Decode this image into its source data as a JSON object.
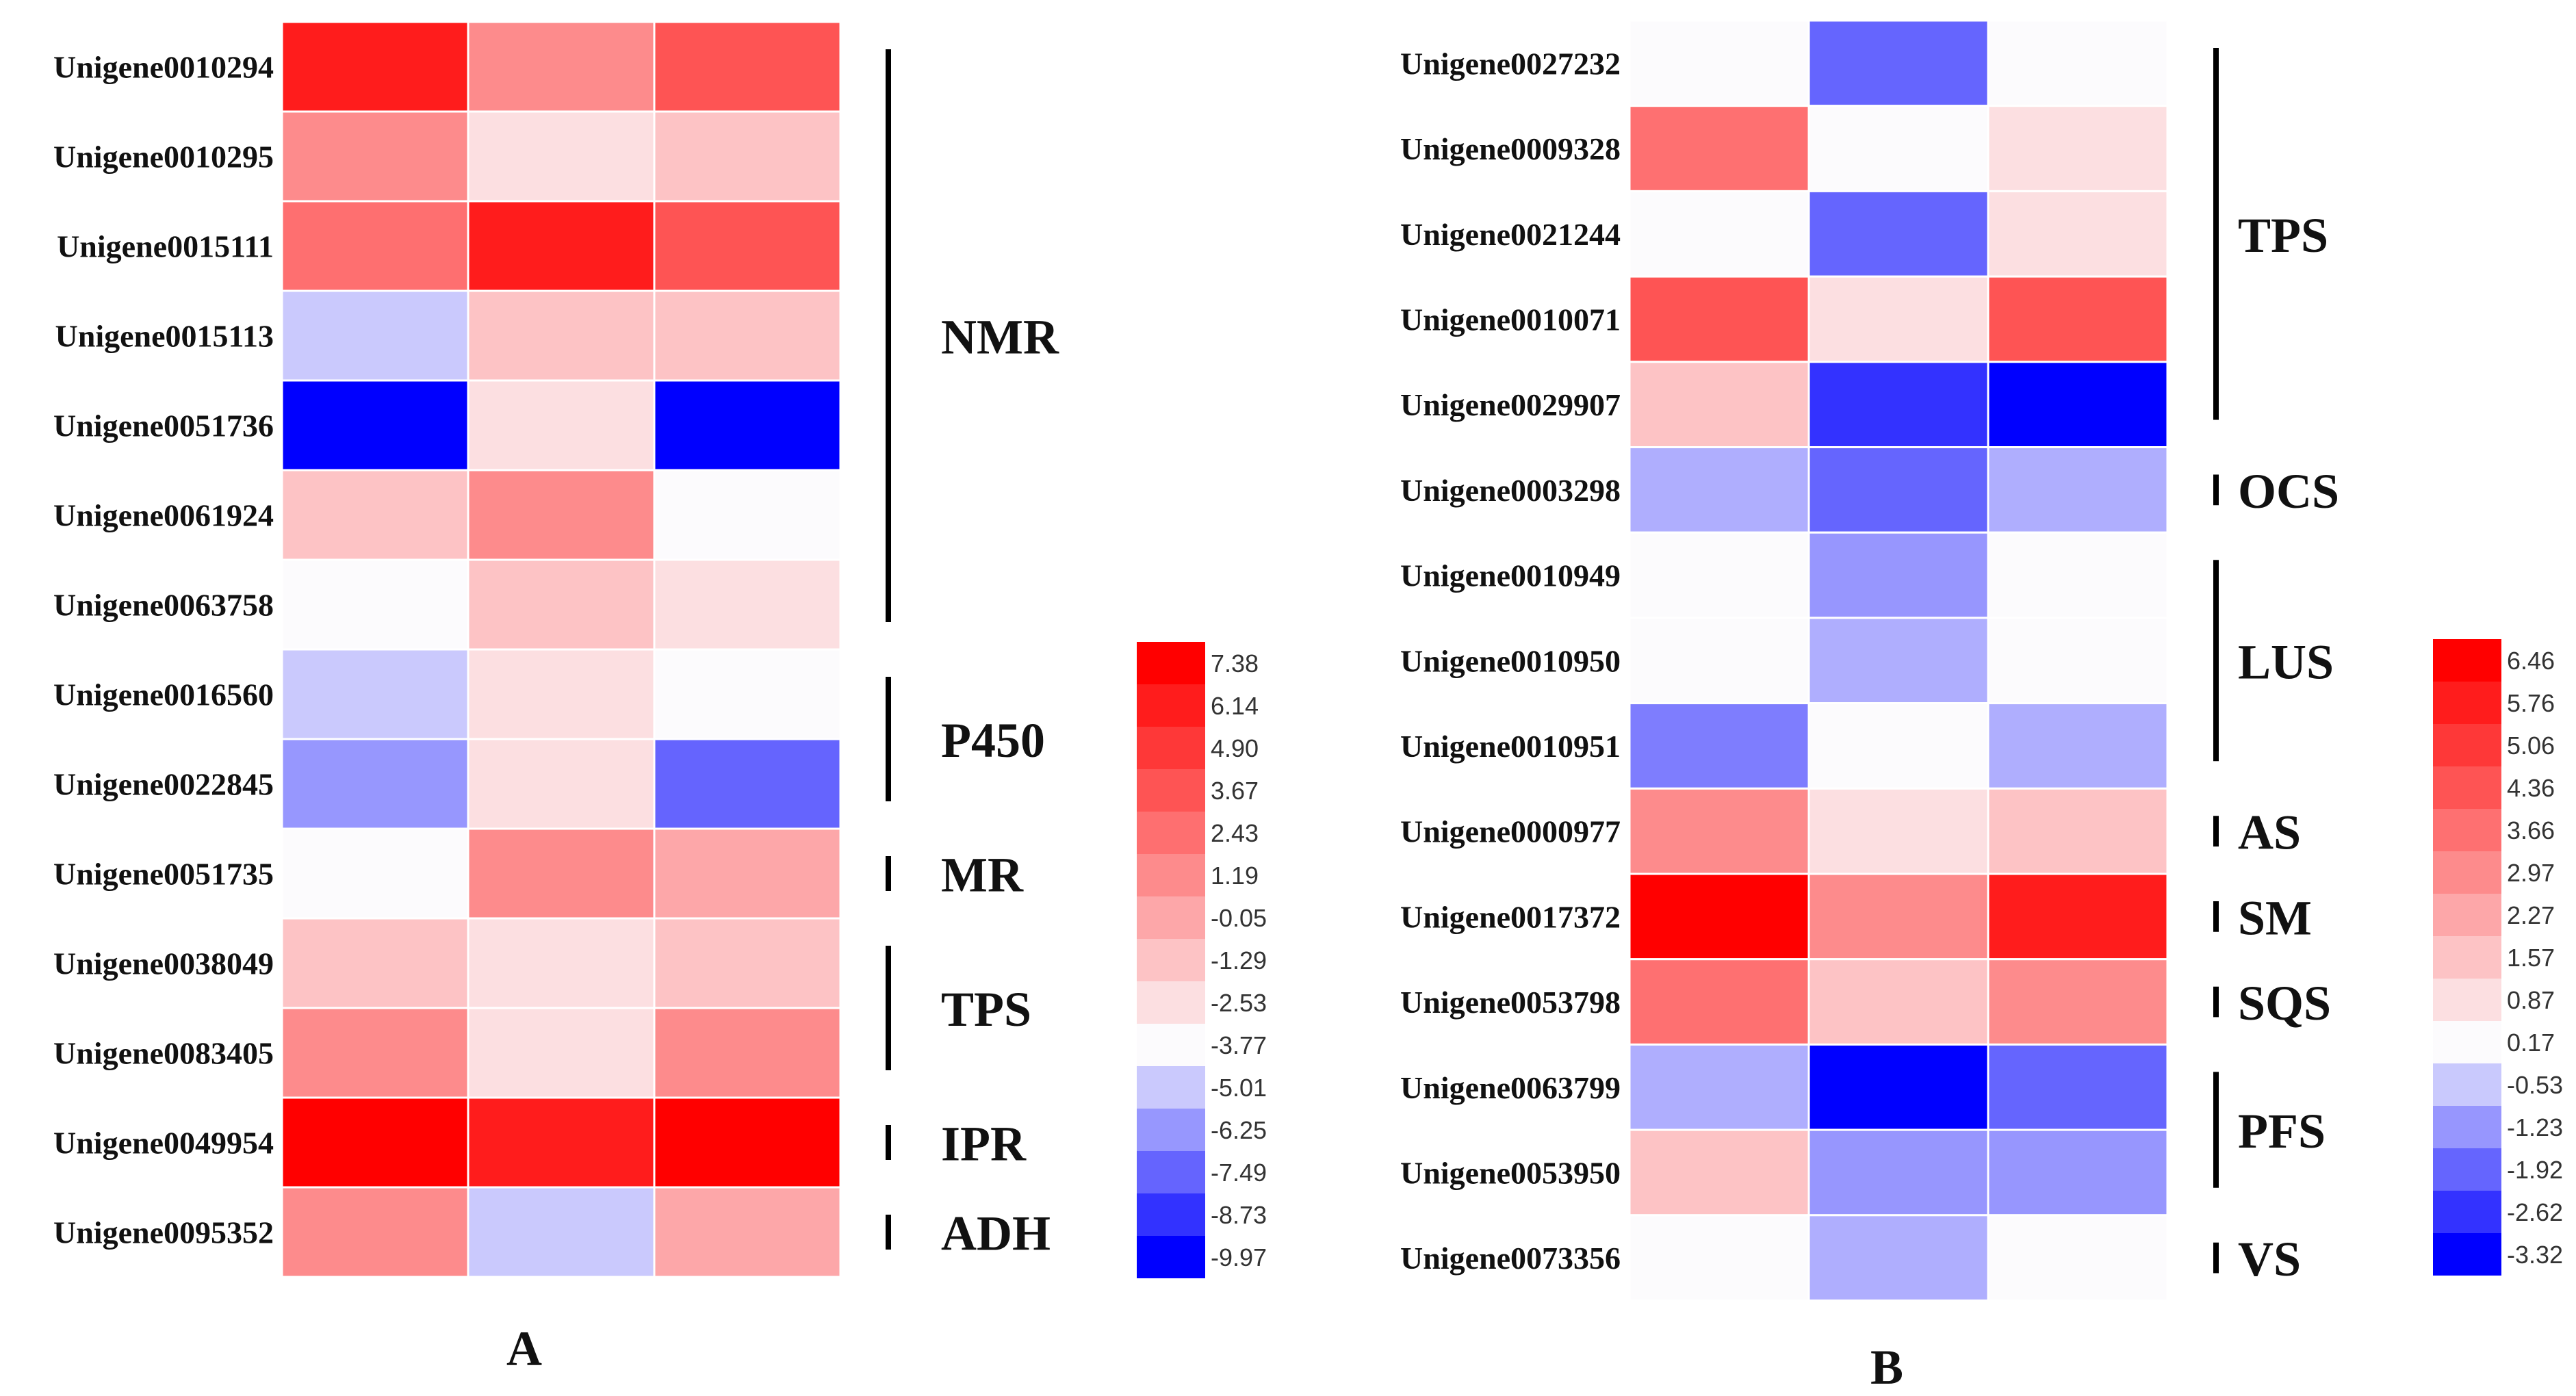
{
  "chart_data": [
    {
      "type": "heatmap",
      "panel_label": "A",
      "rows": [
        "Unigene0010294",
        "Unigene0010295",
        "Unigene0015111",
        "Unigene0015113",
        "Unigene0051736",
        "Unigene0061924",
        "Unigene0063758",
        "Unigene0016560",
        "Unigene0022845",
        "Unigene0051735",
        "Unigene0038049",
        "Unigene0083405",
        "Unigene0049954",
        "Unigene0095352"
      ],
      "columns": 3,
      "values": [
        [
          6.14,
          1.19,
          3.67
        ],
        [
          1.19,
          -2.53,
          -1.29
        ],
        [
          2.43,
          6.14,
          3.67
        ],
        [
          -5.01,
          -1.29,
          -1.29
        ],
        [
          -9.97,
          -2.53,
          -9.97
        ],
        [
          -1.29,
          1.19,
          -3.77
        ],
        [
          -3.77,
          -1.29,
          -2.53
        ],
        [
          -5.01,
          -2.53,
          -3.77
        ],
        [
          -6.25,
          -2.53,
          -7.49
        ],
        [
          -3.77,
          1.19,
          -0.05
        ],
        [
          -1.29,
          -2.53,
          -1.29
        ],
        [
          1.19,
          -2.53,
          1.19
        ],
        [
          7.38,
          6.14,
          7.38
        ],
        [
          1.19,
          -5.01,
          -0.05
        ]
      ],
      "groups": [
        {
          "label": "NMR",
          "start": 0,
          "end": 6
        },
        {
          "label": "P450",
          "start": 7,
          "end": 8
        },
        {
          "label": "MR",
          "start": 9,
          "end": 9
        },
        {
          "label": "TPS",
          "start": 10,
          "end": 11
        },
        {
          "label": "IPR",
          "start": 12,
          "end": 12
        },
        {
          "label": "ADH",
          "start": 13,
          "end": 13
        }
      ],
      "colorbar": {
        "ticks": [
          "7.38",
          "6.14",
          "4.90",
          "3.67",
          "2.43",
          "1.19",
          "-0.05",
          "-1.29",
          "-2.53",
          "-3.77",
          "-5.01",
          "-6.25",
          "-7.49",
          "-8.73",
          "-9.97"
        ],
        "min": -9.97,
        "max": 7.38
      }
    },
    {
      "type": "heatmap",
      "panel_label": "B",
      "rows": [
        "Unigene0027232",
        "Unigene0009328",
        "Unigene0021244",
        "Unigene0010071",
        "Unigene0029907",
        "Unigene0003298",
        "Unigene0010949",
        "Unigene0010950",
        "Unigene0010951",
        "Unigene0000977",
        "Unigene0017372",
        "Unigene0053798",
        "Unigene0063799",
        "Unigene0053950",
        "Unigene0073356"
      ],
      "columns": 3,
      "values": [
        [
          0.17,
          -1.92,
          0.17
        ],
        [
          3.66,
          0.17,
          0.87
        ],
        [
          0.17,
          -1.92,
          0.87
        ],
        [
          4.36,
          0.87,
          4.36
        ],
        [
          1.57,
          -2.62,
          -3.32
        ],
        [
          -0.9,
          -1.92,
          -0.9
        ],
        [
          0.17,
          -1.23,
          0.17
        ],
        [
          0.17,
          -0.9,
          0.17
        ],
        [
          -1.58,
          0.17,
          -0.9
        ],
        [
          2.97,
          0.87,
          1.57
        ],
        [
          6.46,
          2.97,
          5.76
        ],
        [
          3.66,
          1.57,
          2.97
        ],
        [
          -0.9,
          -3.32,
          -1.92
        ],
        [
          1.57,
          -1.23,
          -1.23
        ],
        [
          0.17,
          -0.9,
          0.17
        ]
      ],
      "groups": [
        {
          "label": "TPS",
          "start": 0,
          "end": 4
        },
        {
          "label": "OCS",
          "start": 5,
          "end": 5
        },
        {
          "label": "LUS",
          "start": 6,
          "end": 8
        },
        {
          "label": "AS",
          "start": 9,
          "end": 9
        },
        {
          "label": "SM",
          "start": 10,
          "end": 10
        },
        {
          "label": "SQS",
          "start": 11,
          "end": 11
        },
        {
          "label": "PFS",
          "start": 12,
          "end": 13
        },
        {
          "label": "VS",
          "start": 14,
          "end": 14
        }
      ],
      "colorbar": {
        "ticks": [
          "6.46",
          "5.76",
          "5.06",
          "4.36",
          "3.66",
          "2.97",
          "2.27",
          "1.57",
          "0.87",
          "0.17",
          "-0.53",
          "-1.23",
          "-1.92",
          "-2.62",
          "-3.32"
        ],
        "min": -3.32,
        "max": 6.46
      }
    }
  ]
}
